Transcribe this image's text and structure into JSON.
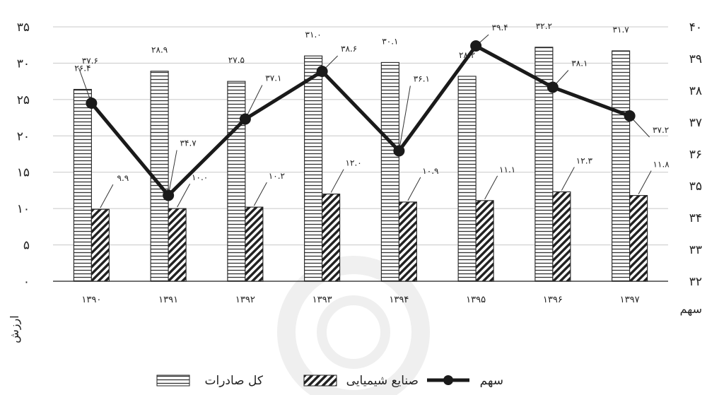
{
  "chart_data": {
    "type": "bar",
    "categories": [
      "۱۳۹۰",
      "۱۳۹۱",
      "۱۳۹۲",
      "۱۳۹۳",
      "۱۳۹۴",
      "۱۳۹۵",
      "۱۳۹۶",
      "۱۳۹۷"
    ],
    "series": [
      {
        "name": "کل صادرات",
        "type": "bar",
        "axis": "left",
        "pattern": "horizontal-lines",
        "values": [
          26.4,
          28.9,
          27.5,
          31.0,
          30.1,
          28.2,
          32.2,
          31.7
        ],
        "value_labels": [
          "۲۶.۴",
          "۲۸.۹",
          "۲۷.۵",
          "۳۱.۰",
          "۳۰.۱",
          "۲۸.۲",
          "۳۲.۲",
          "۳۱.۷"
        ]
      },
      {
        "name": "صنایع شیمیایی",
        "type": "bar",
        "axis": "left",
        "pattern": "diagonal-hatch",
        "values": [
          9.9,
          10.0,
          10.2,
          12.0,
          10.9,
          11.1,
          12.3,
          11.8
        ],
        "value_labels": [
          "۹.۹",
          "۱۰.۰",
          "۱۰.۲",
          "۱۲.۰",
          "۱۰.۹",
          "۱۱.۱",
          "۱۲.۳",
          "۱۱.۸"
        ]
      },
      {
        "name": "سهم",
        "type": "line",
        "axis": "right",
        "color": "#1a1a1a",
        "values": [
          37.6,
          34.7,
          37.1,
          38.6,
          36.1,
          39.4,
          38.1,
          37.2
        ],
        "value_labels": [
          "۳۷.۶",
          "۳۴.۷",
          "۳۷.۱",
          "۳۸.۶",
          "۳۶.۱",
          "۳۹.۴",
          "۳۸.۱",
          "۳۷.۲"
        ]
      }
    ],
    "y_left": {
      "label": "ارزش",
      "range": [
        0,
        35
      ],
      "ticks": [
        "۰",
        "۵",
        "۱۰",
        "۱۵",
        "۲۰",
        "۲۵",
        "۳۰",
        "۳۵"
      ]
    },
    "y_right": {
      "label": "سهم",
      "range": [
        32,
        40
      ],
      "ticks": [
        "۳۲",
        "۳۳",
        "۳۴",
        "۳۵",
        "۳۶",
        "۳۷",
        "۳۸",
        "۳۹",
        "۴۰"
      ]
    },
    "grid": true,
    "legend": "bottom"
  }
}
